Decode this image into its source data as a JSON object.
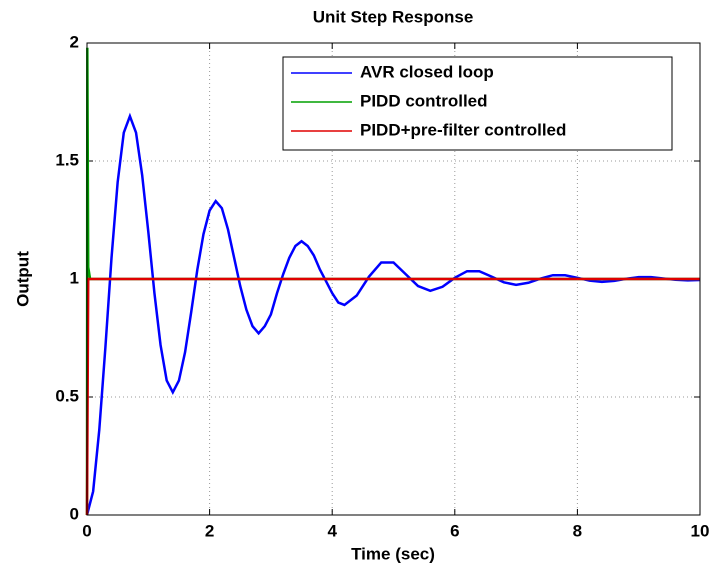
{
  "chart_data": {
    "type": "line",
    "title": "Unit Step Response",
    "xlabel": "Time (sec)",
    "ylabel": "Output",
    "xlim": [
      0,
      10
    ],
    "ylim": [
      0,
      2
    ],
    "xticks": [
      0,
      2,
      4,
      6,
      8,
      10
    ],
    "yticks": [
      0,
      0.5,
      1,
      1.5,
      2
    ],
    "grid": true,
    "legend": "upper right",
    "series": [
      {
        "name": "AVR closed loop",
        "color": "#0000ff",
        "x": [
          0,
          0.1,
          0.2,
          0.3,
          0.4,
          0.5,
          0.6,
          0.7,
          0.8,
          0.9,
          1.0,
          1.1,
          1.2,
          1.3,
          1.4,
          1.5,
          1.6,
          1.7,
          1.8,
          1.9,
          2.0,
          2.1,
          2.2,
          2.3,
          2.4,
          2.5,
          2.6,
          2.7,
          2.8,
          2.9,
          3.0,
          3.1,
          3.2,
          3.3,
          3.4,
          3.5,
          3.6,
          3.7,
          3.8,
          3.9,
          4.0,
          4.1,
          4.2,
          4.4,
          4.6,
          4.8,
          5.0,
          5.2,
          5.4,
          5.6,
          5.8,
          6.0,
          6.2,
          6.4,
          6.6,
          6.8,
          7.0,
          7.2,
          7.4,
          7.6,
          7.8,
          8.0,
          8.2,
          8.4,
          8.6,
          8.8,
          9.0,
          9.2,
          9.4,
          9.6,
          9.8,
          10
        ],
        "values": [
          0,
          0.1,
          0.36,
          0.71,
          1.09,
          1.41,
          1.62,
          1.69,
          1.62,
          1.44,
          1.2,
          0.94,
          0.72,
          0.57,
          0.52,
          0.57,
          0.69,
          0.86,
          1.04,
          1.19,
          1.29,
          1.33,
          1.3,
          1.21,
          1.09,
          0.97,
          0.87,
          0.8,
          0.77,
          0.8,
          0.85,
          0.94,
          1.02,
          1.09,
          1.14,
          1.16,
          1.14,
          1.1,
          1.04,
          0.99,
          0.94,
          0.9,
          0.89,
          0.93,
          1.01,
          1.07,
          1.07,
          1.02,
          0.97,
          0.95,
          0.967,
          1.005,
          1.033,
          1.033,
          1.01,
          0.986,
          0.975,
          0.984,
          1.002,
          1.016,
          1.016,
          1.005,
          0.993,
          0.988,
          0.992,
          1.001,
          1.008,
          1.008,
          1.002,
          0.997,
          0.994,
          0.996
        ]
      },
      {
        "name": "PIDD controlled",
        "color": "#00a000",
        "x": [
          0,
          0.005,
          0.02,
          0.05,
          10
        ],
        "values": [
          0,
          1.98,
          1.05,
          1.0,
          1.0
        ]
      },
      {
        "name": "PIDD+pre-filter controlled",
        "color": "#e00000",
        "x": [
          0,
          0.02,
          10
        ],
        "values": [
          0,
          1.0,
          1.0
        ]
      }
    ]
  }
}
